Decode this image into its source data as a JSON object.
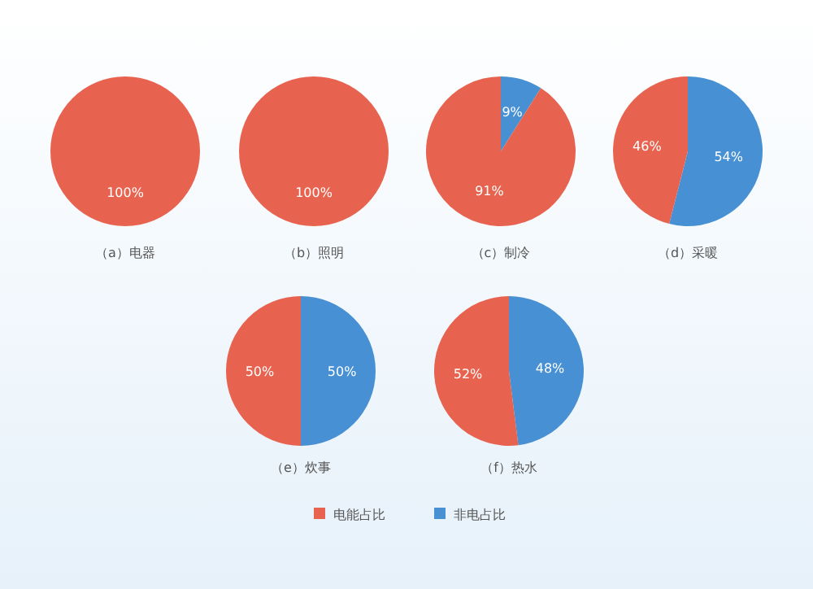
{
  "chart_data": [
    {
      "type": "pie",
      "title": "（a）电器",
      "categories": [
        null,
        null
      ],
      "values": [
        100,
        0
      ],
      "colors": [
        "#e8634f",
        "#4790d3"
      ],
      "value_labels": [
        "100%",
        null
      ]
    },
    {
      "type": "pie",
      "title": "（b）照明",
      "categories": [
        null,
        null
      ],
      "values": [
        100,
        0
      ],
      "colors": [
        "#e8634f",
        "#4790d3"
      ],
      "value_labels": [
        "100%",
        null
      ]
    },
    {
      "type": "pie",
      "title": "（c）制冷",
      "categories": [
        null,
        null
      ],
      "values": [
        91,
        9
      ],
      "colors": [
        "#e8634f",
        "#4790d3"
      ],
      "value_labels": [
        "91%",
        "9%"
      ]
    },
    {
      "type": "pie",
      "title": "（d）采暖",
      "categories": [
        null,
        null
      ],
      "values": [
        46,
        54
      ],
      "colors": [
        "#e8634f",
        "#4790d3"
      ],
      "value_labels": [
        "46%",
        "54%"
      ]
    },
    {
      "type": "pie",
      "title": "（e）炊事",
      "categories": [
        null,
        null
      ],
      "values": [
        50,
        50
      ],
      "colors": [
        "#e8634f",
        "#4790d3"
      ],
      "value_labels": [
        "50%",
        "50%"
      ]
    },
    {
      "type": "pie",
      "title": "（f）热水",
      "categories": [
        "电能占比",
        "非电占比"
      ],
      "values": [
        52,
        48
      ],
      "colors": [
        "#e8634f",
        "#4790d3"
      ],
      "value_labels": [
        "52%",
        "48%"
      ],
      "legend": "bottom"
    }
  ]
}
